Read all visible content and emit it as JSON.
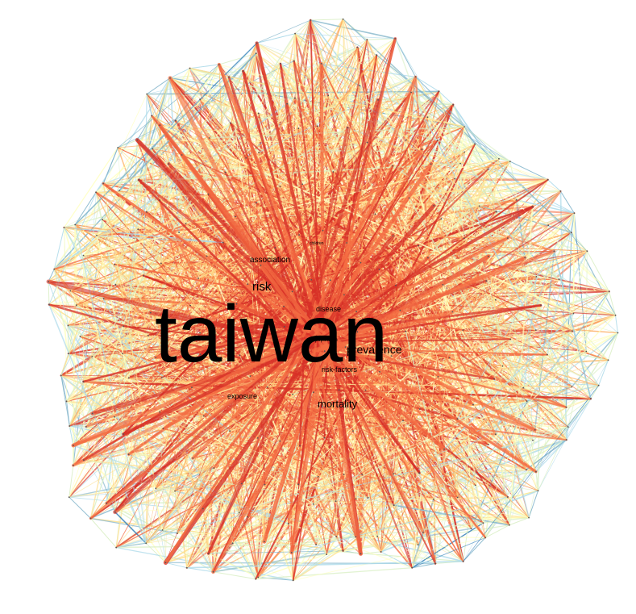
{
  "network": {
    "edge_palette": [
      "#2c7bb6",
      "#7fb3c9",
      "#abd9e9",
      "#d9efc4",
      "#ffffbf",
      "#fee090",
      "#fdae61",
      "#f46d43",
      "#d73027"
    ],
    "hub_color": "#d73027",
    "background": "#ffffff",
    "keywords": [
      {
        "text": "taiwan",
        "weight": 1.0
      },
      {
        "text": "risk",
        "weight": 0.33
      },
      {
        "text": "mortality",
        "weight": 0.3
      },
      {
        "text": "prevalence",
        "weight": 0.32
      },
      {
        "text": "association",
        "weight": 0.22
      },
      {
        "text": "disease",
        "weight": 0.19
      },
      {
        "text": "risk-factors",
        "weight": 0.19
      },
      {
        "text": "exposure",
        "weight": 0.18
      },
      {
        "text": "population",
        "weight": 0.13
      },
      {
        "text": "children",
        "weight": 0.1
      }
    ]
  }
}
